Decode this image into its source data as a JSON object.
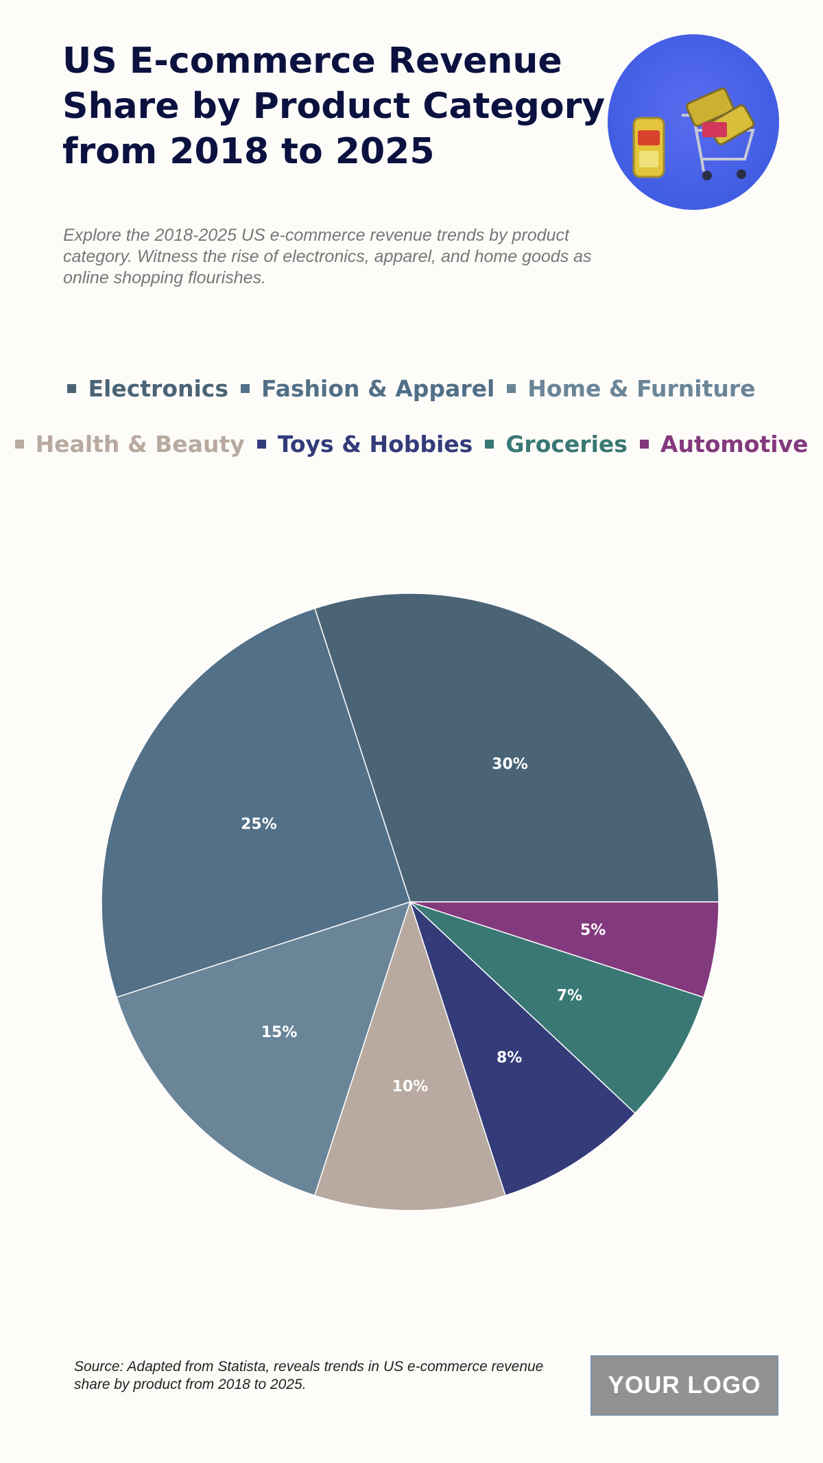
{
  "header": {
    "title": "US E-commerce Revenue Share by Product Category from 2018 to 2025",
    "subtitle": "Explore the 2018-2025 US e-commerce revenue trends by product category. Witness the rise of electronics, apparel, and home goods as online shopping flourishes."
  },
  "chart_data": {
    "type": "pie",
    "categories": [
      "Electronics",
      "Fashion & Apparel",
      "Home & Furniture",
      "Health & Beauty",
      "Toys & Hobbies",
      "Groceries",
      "Automotive"
    ],
    "values": [
      30,
      25,
      15,
      10,
      8,
      7,
      5
    ],
    "value_labels": [
      "30%",
      "25%",
      "15%",
      "10%",
      "8%",
      "7%",
      "5%"
    ],
    "colors": [
      "#4a6476",
      "#527087",
      "#6a8598",
      "#b8aaa0",
      "#333b79",
      "#397874",
      "#83397d"
    ],
    "legend_placement": "top"
  },
  "footer": {
    "source": "Source: Adapted from Statista, reveals trends in US e-commerce revenue share by product from 2018 to 2025.",
    "logo_text": "YOUR LOGO"
  }
}
